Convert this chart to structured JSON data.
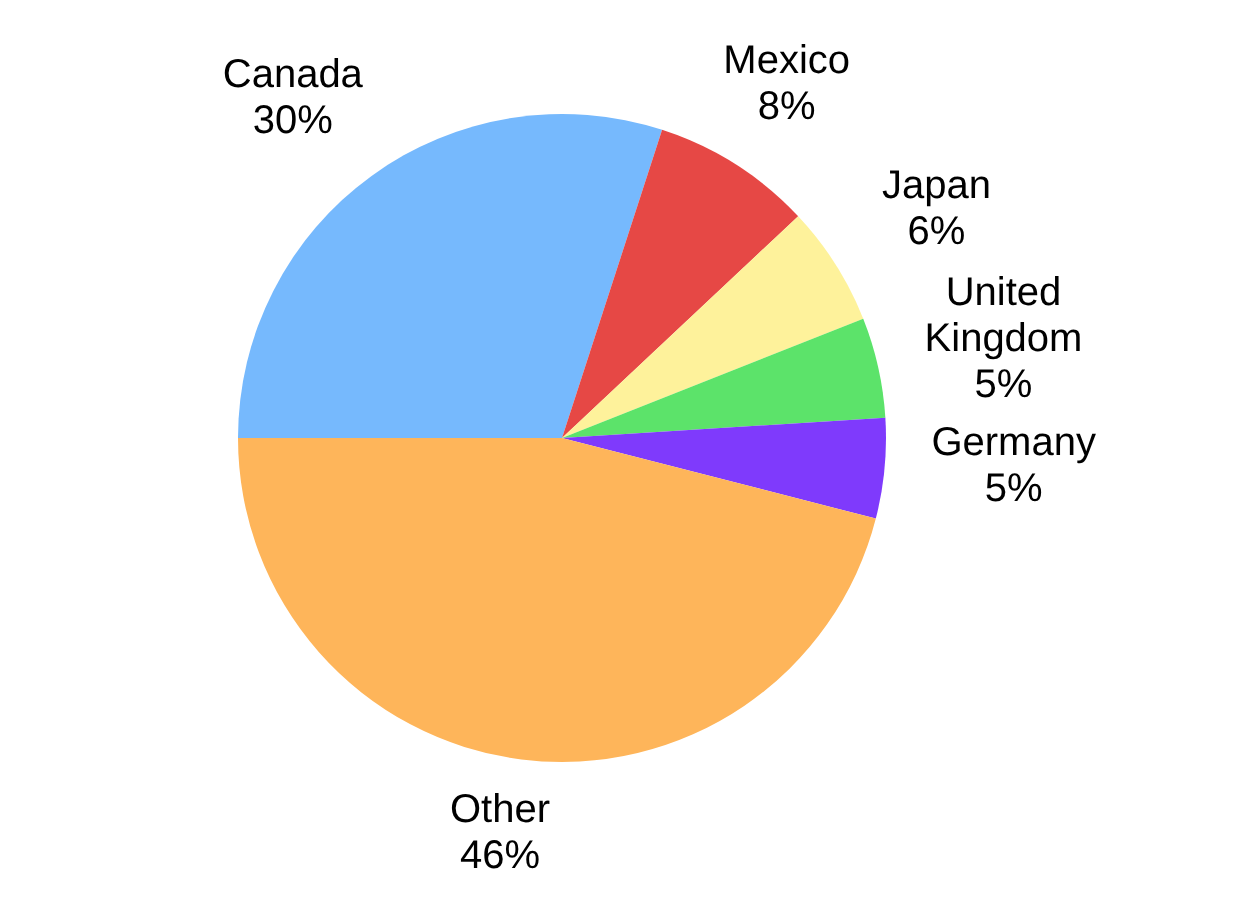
{
  "chart_data": {
    "type": "pie",
    "categories": [
      "Canada",
      "Mexico",
      "Japan",
      "United Kingdom",
      "Germany",
      "Other"
    ],
    "values": [
      30,
      8,
      6,
      5,
      5,
      46
    ],
    "value_labels": [
      "30%",
      "8%",
      "6%",
      "5%",
      "5%",
      "46%"
    ],
    "colors": [
      "#76b9fd",
      "#e64845",
      "#fef29b",
      "#5ce36a",
      "#7f3afc",
      "#feb55a"
    ],
    "legend": false
  }
}
